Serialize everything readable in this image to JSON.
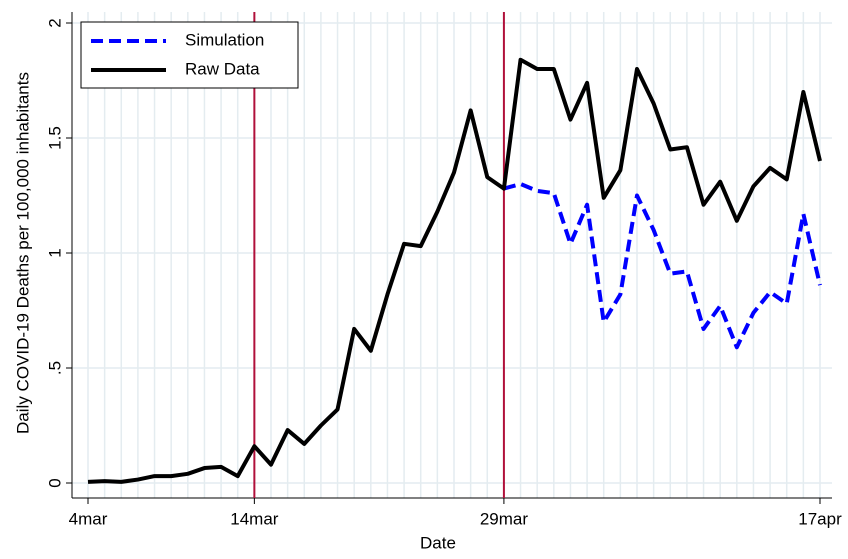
{
  "chart_data": {
    "type": "line",
    "xlabel": "Date",
    "ylabel": "Daily COVID-19 Deaths per 100,000 inhabitants",
    "categories": [
      "4mar",
      null,
      null,
      null,
      null,
      null,
      null,
      null,
      null,
      null,
      "14mar",
      null,
      null,
      null,
      null,
      null,
      null,
      null,
      null,
      null,
      null,
      null,
      null,
      null,
      null,
      "29mar",
      null,
      null,
      null,
      null,
      null,
      null,
      null,
      null,
      null,
      null,
      null,
      null,
      null,
      null,
      null,
      null,
      null,
      null,
      "17apr"
    ],
    "series": [
      {
        "name": "Simulation",
        "color": "#0000ff",
        "dashed": true,
        "values": [
          null,
          null,
          null,
          null,
          null,
          null,
          null,
          null,
          null,
          null,
          null,
          null,
          null,
          null,
          null,
          null,
          null,
          null,
          null,
          null,
          null,
          null,
          null,
          null,
          null,
          1.28,
          1.3,
          1.27,
          1.26,
          1.04,
          1.21,
          0.7,
          0.82,
          1.25,
          1.1,
          0.91,
          0.92,
          0.67,
          0.77,
          0.59,
          0.74,
          0.83,
          0.78,
          1.17,
          0.86
        ]
      },
      {
        "name": "Raw Data",
        "color": "#000000",
        "dashed": false,
        "values": [
          0.005,
          0.008,
          0.005,
          0.015,
          0.03,
          0.03,
          0.04,
          0.065,
          0.07,
          0.03,
          0.16,
          0.08,
          0.23,
          0.17,
          0.25,
          0.32,
          0.67,
          0.575,
          0.82,
          1.04,
          1.03,
          1.18,
          1.35,
          1.62,
          1.33,
          1.28,
          1.84,
          1.8,
          1.8,
          1.58,
          1.74,
          1.24,
          1.36,
          1.8,
          1.65,
          1.45,
          1.46,
          1.21,
          1.31,
          1.14,
          1.29,
          1.37,
          1.32,
          1.7,
          1.4
        ]
      }
    ],
    "vlines": [
      "14mar",
      "29mar"
    ],
    "vline_color": "#b0103a",
    "ylim": [
      0,
      2
    ],
    "yticks": [
      0,
      {
        "value": 0.5,
        "label": ".5"
      },
      1,
      1.5,
      2
    ],
    "grid": true,
    "legend": "top-left"
  }
}
